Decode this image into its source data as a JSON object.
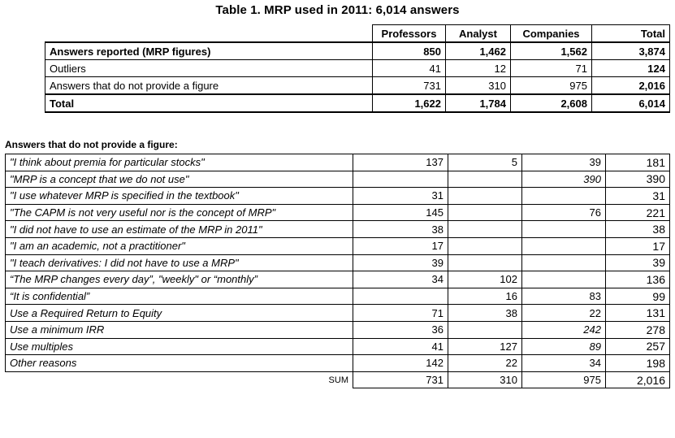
{
  "title": "Table 1. MRP used in 2011: 6,014 answers",
  "table1": {
    "headers": [
      "Professors",
      "Analyst",
      "Companies",
      "Total"
    ],
    "rows": [
      {
        "label": "Answers reported (MRP figures)",
        "values": [
          "850",
          "1,462",
          "1,562",
          "3,874"
        ]
      },
      {
        "label": "Outliers",
        "values": [
          "41",
          "12",
          "71",
          "124"
        ]
      },
      {
        "label": "Answers that do not provide a figure",
        "values": [
          "731",
          "310",
          "975",
          "2,016"
        ]
      },
      {
        "label": "Total",
        "values": [
          "1,622",
          "1,784",
          "2,608",
          "6,014"
        ]
      }
    ]
  },
  "subtitle": "Answers that do not provide a figure:",
  "table2": {
    "rows": [
      {
        "label": "\"I think about premia for particular stocks\"",
        "values": [
          "137",
          "5",
          "39",
          "181"
        ]
      },
      {
        "label": "\"MRP is a concept that we do not use\"",
        "values": [
          "",
          "",
          "390",
          "390"
        ]
      },
      {
        "label": "\"I use whatever MRP is specified in the textbook\"",
        "values": [
          "31",
          "",
          "",
          "31"
        ]
      },
      {
        "label": "\"The CAPM is not very useful nor is the concept of MRP\"",
        "values": [
          "145",
          "",
          "76",
          "221"
        ]
      },
      {
        "label": "\"I did not have to use an estimate of the MRP in 2011\"",
        "values": [
          "38",
          "",
          "",
          "38"
        ]
      },
      {
        "label": "\"I am an academic, not a practitioner\"",
        "values": [
          "17",
          "",
          "",
          "17"
        ]
      },
      {
        "label": "\"I teach derivatives: I did not have to use a MRP\"",
        "values": [
          "39",
          "",
          "",
          "39"
        ]
      },
      {
        "label": "“The MRP changes every day”, \"weekly\" or “monthly”",
        "values": [
          "34",
          "102",
          "",
          "136"
        ]
      },
      {
        "label": "“It is confidential”",
        "values": [
          "",
          "16",
          "83",
          "99"
        ]
      },
      {
        "label": "Use a Required Return to Equity",
        "values": [
          "71",
          "38",
          "22",
          "131"
        ]
      },
      {
        "label": "Use a minimum IRR",
        "values": [
          "36",
          "",
          "242",
          "278"
        ]
      },
      {
        "label": "Use multiples",
        "values": [
          "41",
          "127",
          "89",
          "257"
        ]
      },
      {
        "label": "Other reasons",
        "values": [
          "142",
          "22",
          "34",
          "198"
        ]
      }
    ],
    "sum": {
      "label": "SUM",
      "values": [
        "731",
        "310",
        "975",
        "2,016"
      ]
    }
  }
}
